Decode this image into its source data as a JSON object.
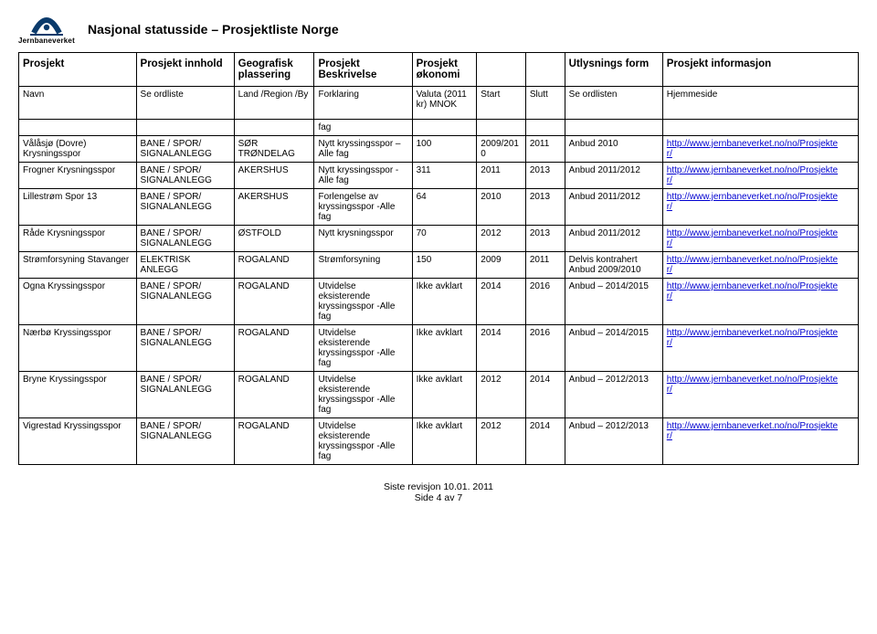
{
  "logo_text": "Jernbaneverket",
  "page_title": "Nasjonal statusside – Prosjektliste Norge",
  "header1": {
    "c1": "Prosjekt",
    "c2": "Prosjekt innhold",
    "c3": "Geografisk plassering",
    "c4": "Prosjekt Beskrivelse",
    "c5": "Prosjekt økonomi",
    "c6": "",
    "c7": "",
    "c8": "Utlysnings form",
    "c9": "Prosjekt informasjon"
  },
  "header2": {
    "c1": "Navn",
    "c2": "Se ordliste",
    "c3": "Land /Region /By",
    "c4": "Forklaring",
    "c5": "Valuta (2011 kr) MNOK",
    "c6": "Start",
    "c7": "Slutt",
    "c8": "Se ordlisten",
    "c9": "Hjemmeside"
  },
  "top_frag": {
    "c4": "fag"
  },
  "rows": [
    {
      "c1": "Vålåsjø (Dovre) Krysningsspor",
      "c2": "BANE / SPOR/ SIGNALANLEGG",
      "c3": "SØR TRØNDELAG",
      "c4": "Nytt kryssingsspor – Alle fag",
      "c5": "100",
      "c6": "2009/2010",
      "c7": "2011",
      "c8": "Anbud 2010",
      "c9a": "http://www.jernbaneverket.no/no/Prosjekte",
      "c9b": "r/"
    },
    {
      "c1": "Frogner Krysningsspor",
      "c2": "BANE / SPOR/ SIGNALANLEGG",
      "c3": "AKERSHUS",
      "c4": "Nytt kryssingsspor -Alle fag",
      "c5": "311",
      "c6": "2011",
      "c7": "2013",
      "c8": "Anbud 2011/2012",
      "c9a": "http://www.jernbaneverket.no/no/Prosjekte",
      "c9b": "r/"
    },
    {
      "c1": "Lillestrøm Spor 13",
      "c2": "BANE / SPOR/ SIGNALANLEGG",
      "c3": "AKERSHUS",
      "c4": "Forlengelse av kryssingsspor -Alle fag",
      "c5": "64",
      "c6": "2010",
      "c7": "2013",
      "c8": "Anbud 2011/2012",
      "c9a": "http://www.jernbaneverket.no/no/Prosjekte",
      "c9b": "r/"
    },
    {
      "c1": "Råde Krysningsspor",
      "c2": "BANE / SPOR/ SIGNALANLEGG",
      "c3": "ØSTFOLD",
      "c4": "Nytt krysningsspor",
      "c5": "70",
      "c6": "2012",
      "c7": "2013",
      "c8": "Anbud 2011/2012",
      "c9a": "http://www.jernbaneverket.no/no/Prosjekte",
      "c9b": "r/"
    },
    {
      "c1": "Strømforsyning Stavanger",
      "c2": "ELEKTRISK ANLEGG",
      "c3": "ROGALAND",
      "c4": "Strømforsyning",
      "c5": "150",
      "c6": "2009",
      "c7": "2011",
      "c8": "Delvis kontrahert Anbud 2009/2010",
      "c9a": "http://www.jernbaneverket.no/no/Prosjekte",
      "c9b": "r/"
    },
    {
      "c1": "Ogna Kryssingsspor",
      "c2": "BANE / SPOR/ SIGNALANLEGG",
      "c3": "ROGALAND",
      "c4": "Utvidelse eksisterende kryssingsspor -Alle fag",
      "c5": "Ikke avklart",
      "c6": "2014",
      "c7": "2016",
      "c8": "Anbud – 2014/2015",
      "c9a": "http://www.jernbaneverket.no/no/Prosjekte",
      "c9b": "r/"
    },
    {
      "c1": "Nærbø Kryssingsspor",
      "c2": "BANE / SPOR/ SIGNALANLEGG",
      "c3": "ROGALAND",
      "c4": "Utvidelse eksisterende kryssingsspor -Alle fag",
      "c5": "Ikke avklart",
      "c6": "2014",
      "c7": "2016",
      "c8": "Anbud – 2014/2015",
      "c9a": "http://www.jernbaneverket.no/no/Prosjekte",
      "c9b": "r/"
    },
    {
      "c1": "Bryne Kryssingsspor",
      "c2": "BANE / SPOR/ SIGNALANLEGG",
      "c3": "ROGALAND",
      "c4": "Utvidelse eksisterende kryssingsspor -Alle fag",
      "c5": "Ikke avklart",
      "c6": "2012",
      "c7": "2014",
      "c8": "Anbud – 2012/2013",
      "c9a": "http://www.jernbaneverket.no/no/Prosjekte",
      "c9b": "r/"
    },
    {
      "c1": "Vigrestad Kryssingsspor",
      "c2": "BANE / SPOR/ SIGNALANLEGG",
      "c3": "ROGALAND",
      "c4": "Utvidelse eksisterende kryssingsspor -Alle fag",
      "c5": "Ikke avklart",
      "c6": "2012",
      "c7": "2014",
      "c8": "Anbud – 2012/2013",
      "c9a": "http://www.jernbaneverket.no/no/Prosjekte",
      "c9b": "r/"
    }
  ],
  "footer_line1": "Siste revisjon 10.01. 2011",
  "footer_line2": "Side 4 av  7"
}
